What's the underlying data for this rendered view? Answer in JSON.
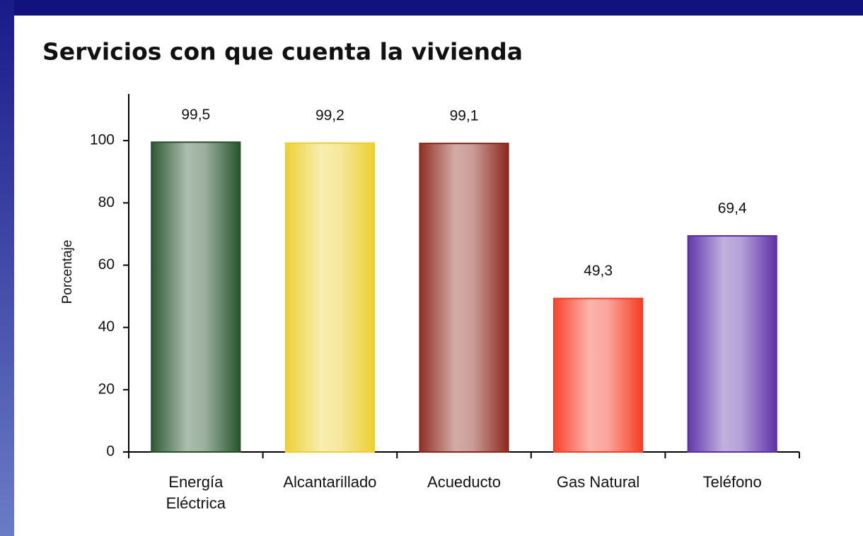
{
  "chart_data": {
    "type": "bar",
    "title": "Servicios con que cuenta la vivienda",
    "y_label": "Porcentaje",
    "categories": [
      "Energía\nEléctrica",
      "Alcantarillado",
      "Acueducto",
      "Gas Natural",
      "Teléfono"
    ],
    "values": [
      99.5,
      99.2,
      99.1,
      49.3,
      69.4
    ],
    "value_labels": [
      "99,5",
      "99,2",
      "99,1",
      "49,3",
      "69,4"
    ],
    "colors": [
      "#24502a",
      "#eccf2c",
      "#8a2418",
      "#f53a22",
      "#5a2ea6"
    ],
    "ylim": [
      0,
      115
    ],
    "yticks": [
      0,
      20,
      40,
      60,
      80,
      100
    ],
    "grid": false
  }
}
